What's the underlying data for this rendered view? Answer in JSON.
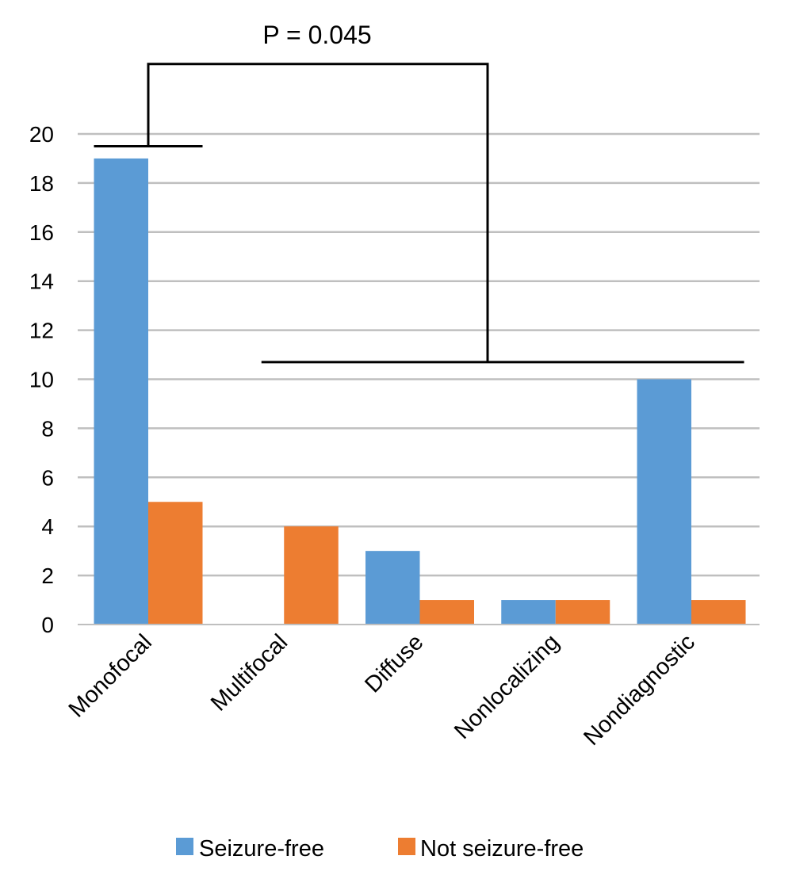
{
  "chart_data": {
    "type": "bar",
    "title": "",
    "xlabel": "",
    "ylabel": "",
    "categories": [
      "Monofocal",
      "Multifocal",
      "Diffuse",
      "Nonlocalizing",
      "Nondiagnostic"
    ],
    "series": [
      {
        "name": "Seizure-free",
        "color": "#5B9BD5",
        "values": [
          19,
          0,
          3,
          1,
          10
        ]
      },
      {
        "name": "Not seizure-free",
        "color": "#ED7D31",
        "values": [
          5,
          4,
          1,
          1,
          1
        ]
      }
    ],
    "ylim": [
      0,
      20
    ],
    "yticks": [
      0,
      2,
      4,
      6,
      8,
      10,
      12,
      14,
      16,
      18,
      20
    ],
    "grid": true,
    "legend": "bottom",
    "annotation": {
      "text": "P = 0.045",
      "left_group": [
        0,
        0
      ],
      "right_group": [
        1,
        4
      ],
      "left_y": 19.5,
      "right_y": 10.7,
      "top_y": 22.85
    }
  }
}
